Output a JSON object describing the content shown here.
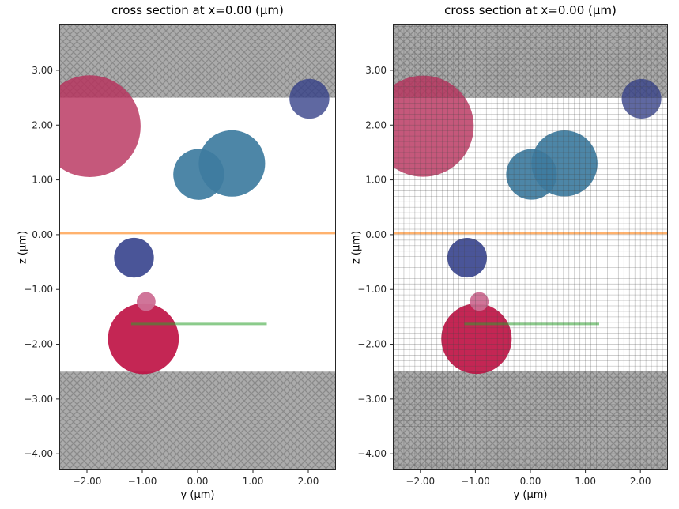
{
  "figure": {
    "background": "#ffffff"
  },
  "chart_data": [
    {
      "type": "scatter",
      "title": "cross section at x=0.00 (μm)",
      "xlabel": "y (μm)",
      "ylabel": "z (μm)",
      "xlim": [
        -2.5,
        2.5
      ],
      "ylim": [
        -4.3,
        3.85
      ],
      "xtick_values": [
        -2,
        -1,
        0,
        1,
        2
      ],
      "xtick_labels": [
        "−2.00",
        "−1.00",
        "0.00",
        "1.00",
        "2.00"
      ],
      "ytick_values": [
        3,
        2,
        1,
        0,
        -1,
        -2,
        -3,
        -4
      ],
      "ytick_labels": [
        "3.00",
        "2.00",
        "1.00",
        "0.00",
        "−1.00",
        "−2.00",
        "−3.00",
        "−4.00"
      ],
      "spine": "#262626",
      "hatch": {
        "fill": "#ababab",
        "line": "#8a8a8a",
        "cell": 9,
        "line_width": 1.3
      },
      "grid": {
        "show": false,
        "step": 0.1,
        "color": "rgba(70,70,70,0.30)",
        "width": 0.8
      },
      "shapes": [
        {
          "kind": "band",
          "name": "pml-region-top",
          "z0": 2.5,
          "z1": 3.85
        },
        {
          "kind": "band",
          "name": "pml-region-bottom",
          "z0": -4.3,
          "z1": -2.5
        },
        {
          "kind": "circle",
          "name": "sphere-rose-large",
          "y": -1.95,
          "z": 1.98,
          "r": 0.92,
          "fill": "rgba(182,46,90,0.80)"
        },
        {
          "kind": "circle",
          "name": "sphere-blue-top-right",
          "y": 2.02,
          "z": 2.48,
          "r": 0.36,
          "fill": "rgba(50,62,135,0.78)"
        },
        {
          "kind": "circle",
          "name": "sphere-steelblue-small",
          "y": 0.02,
          "z": 1.1,
          "r": 0.46,
          "fill": "rgba(62,124,160,0.92)"
        },
        {
          "kind": "circle",
          "name": "sphere-steelblue-large",
          "y": 0.62,
          "z": 1.3,
          "r": 0.6,
          "fill": "rgba(62,124,160,0.92)"
        },
        {
          "kind": "circle",
          "name": "sphere-blue-middle",
          "y": -1.15,
          "z": -0.42,
          "r": 0.36,
          "fill": "rgba(49,62,138,0.88)"
        },
        {
          "kind": "circle",
          "name": "sphere-crimson-large",
          "y": -0.98,
          "z": -1.9,
          "r": 0.64,
          "fill": "rgba(190,14,65,0.90)"
        },
        {
          "kind": "circle",
          "name": "sphere-pink-small",
          "y": -0.93,
          "z": -1.22,
          "r": 0.17,
          "fill": "rgba(206,110,148,0.95)"
        },
        {
          "kind": "hline",
          "name": "source-line-orange",
          "z": 0.03,
          "y0": -2.5,
          "y1": 2.5,
          "stroke": "rgba(255,127,14,0.60)",
          "width": 3
        },
        {
          "kind": "hline",
          "name": "monitor-line-green",
          "z": -1.63,
          "y0": -1.2,
          "y1": 1.25,
          "stroke": "rgba(44,160,44,0.55)",
          "width": 3
        }
      ]
    },
    {
      "type": "scatter",
      "title": "cross section at x=0.00 (μm)",
      "xlabel": "y (μm)",
      "ylabel": "z (μm)",
      "xlim": [
        -2.5,
        2.5
      ],
      "ylim": [
        -4.3,
        3.85
      ],
      "xtick_values": [
        -2,
        -1,
        0,
        1,
        2
      ],
      "xtick_labels": [
        "−2.00",
        "−1.00",
        "0.00",
        "1.00",
        "2.00"
      ],
      "ytick_values": [
        3,
        2,
        1,
        0,
        -1,
        -2,
        -3,
        -4
      ],
      "ytick_labels": [
        "3.00",
        "2.00",
        "1.00",
        "0.00",
        "−1.00",
        "−2.00",
        "−3.00",
        "−4.00"
      ],
      "spine": "#262626",
      "hatch": {
        "fill": "#ababab",
        "line": "#8a8a8a",
        "cell": 9,
        "line_width": 1.3
      },
      "grid": {
        "show": true,
        "step": 0.1,
        "color": "rgba(70,70,70,0.30)",
        "width": 0.8
      },
      "shapes": [
        {
          "kind": "band",
          "name": "pml-region-top",
          "z0": 2.5,
          "z1": 3.85
        },
        {
          "kind": "band",
          "name": "pml-region-bottom",
          "z0": -4.3,
          "z1": -2.5
        },
        {
          "kind": "circle",
          "name": "sphere-rose-large",
          "y": -1.95,
          "z": 1.98,
          "r": 0.92,
          "fill": "rgba(182,46,90,0.80)"
        },
        {
          "kind": "circle",
          "name": "sphere-blue-top-right",
          "y": 2.02,
          "z": 2.48,
          "r": 0.36,
          "fill": "rgba(50,62,135,0.78)"
        },
        {
          "kind": "circle",
          "name": "sphere-steelblue-small",
          "y": 0.02,
          "z": 1.1,
          "r": 0.46,
          "fill": "rgba(62,124,160,0.92)"
        },
        {
          "kind": "circle",
          "name": "sphere-steelblue-large",
          "y": 0.62,
          "z": 1.3,
          "r": 0.6,
          "fill": "rgba(62,124,160,0.92)"
        },
        {
          "kind": "circle",
          "name": "sphere-blue-middle",
          "y": -1.15,
          "z": -0.42,
          "r": 0.36,
          "fill": "rgba(49,62,138,0.88)"
        },
        {
          "kind": "circle",
          "name": "sphere-crimson-large",
          "y": -0.98,
          "z": -1.9,
          "r": 0.64,
          "fill": "rgba(190,14,65,0.90)"
        },
        {
          "kind": "circle",
          "name": "sphere-pink-small",
          "y": -0.93,
          "z": -1.22,
          "r": 0.17,
          "fill": "rgba(206,110,148,0.95)"
        },
        {
          "kind": "hline",
          "name": "source-line-orange",
          "z": 0.03,
          "y0": -2.5,
          "y1": 2.5,
          "stroke": "rgba(255,127,14,0.60)",
          "width": 3
        },
        {
          "kind": "hline",
          "name": "monitor-line-green",
          "z": -1.63,
          "y0": -1.2,
          "y1": 1.25,
          "stroke": "rgba(44,160,44,0.55)",
          "width": 3
        }
      ]
    }
  ]
}
